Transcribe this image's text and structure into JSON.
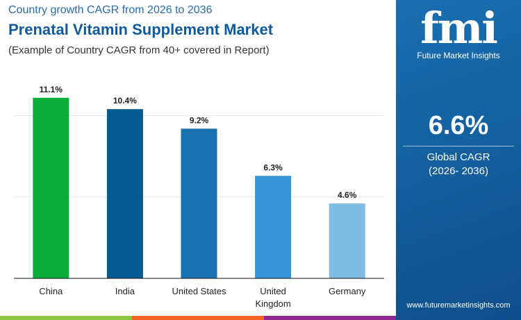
{
  "header": {
    "subtitle_top": "Country growth CAGR from 2026 to 2036",
    "title": "Prenatal Vitamin Supplement Market",
    "note": "(Example of Country CAGR from 40+ covered in Report)"
  },
  "panel": {
    "logo": "fmi",
    "logo_sub": "Future Market Insights",
    "value": "6.6%",
    "label": "Global CAGR",
    "period": "(2026- 2036)",
    "url": "www.futuremarketinsights.com",
    "bg": "#125f9f"
  },
  "strip_colors": [
    "#8dc63f",
    "#f26522",
    "#92278f"
  ],
  "chart_data": {
    "type": "bar",
    "categories": [
      "China",
      "India",
      "United States",
      "United Kingdom",
      "Germany"
    ],
    "values": [
      11.1,
      10.4,
      9.2,
      6.3,
      4.6
    ],
    "labels": [
      "11.1%",
      "10.4%",
      "9.2%",
      "6.3%",
      "4.6%"
    ],
    "colors": [
      "#0aae3a",
      "#065a92",
      "#1a72b0",
      "#3595d6",
      "#7fbce3"
    ],
    "ylim": [
      0,
      12.5
    ],
    "gridlines": [
      5,
      10
    ],
    "grid": true,
    "unit": "%"
  }
}
